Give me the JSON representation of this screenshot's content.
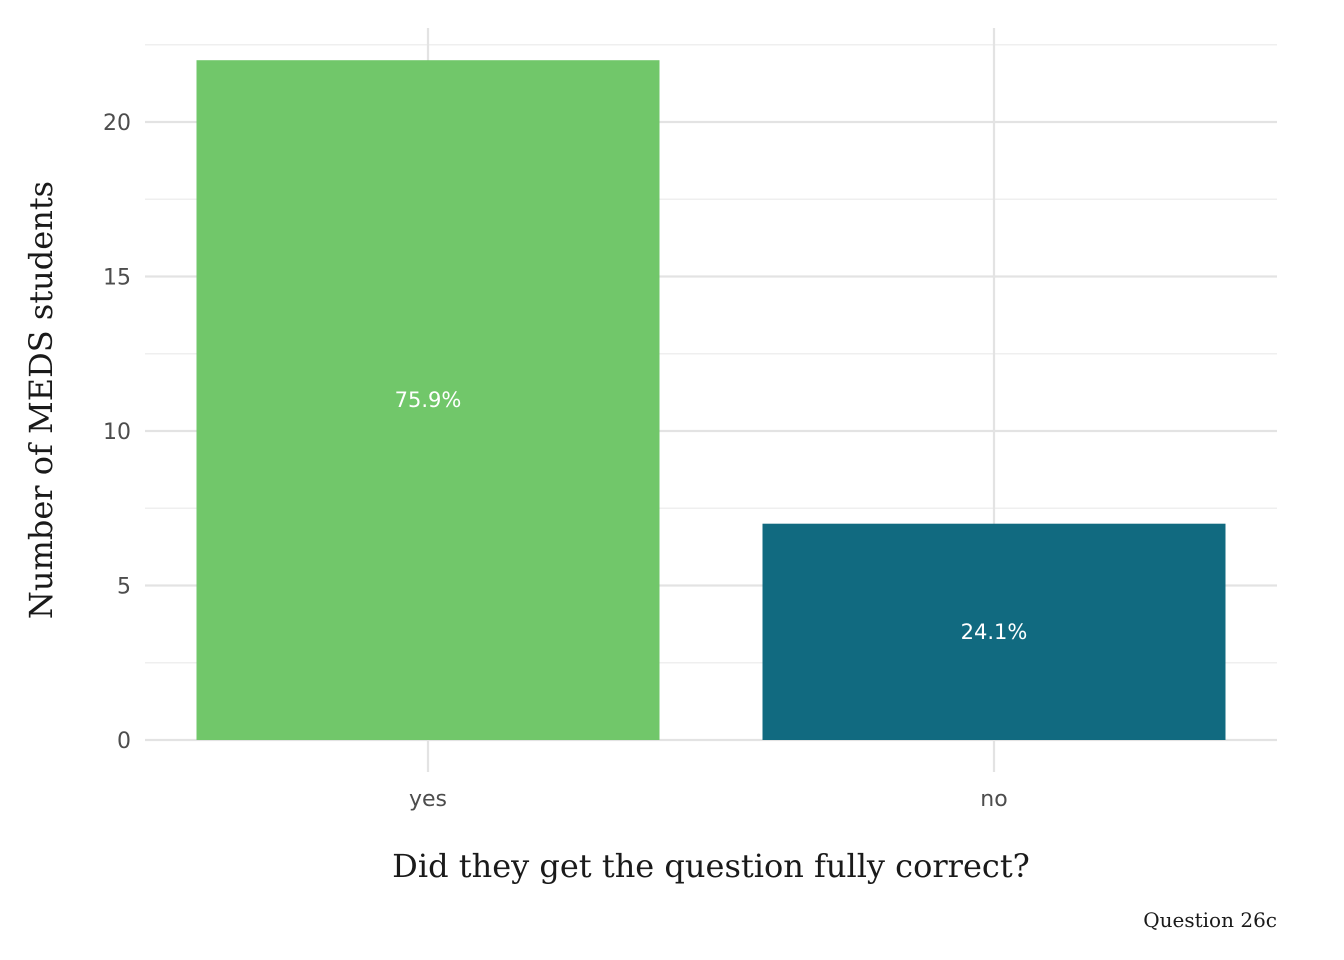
{
  "chart_data": {
    "type": "bar",
    "categories": [
      "yes",
      "no"
    ],
    "values": [
      22,
      7
    ],
    "labels": [
      "75.9%",
      "24.1%"
    ],
    "colors": [
      "#71c76a",
      "#116a80"
    ],
    "xlabel": "Did they get the question fully correct?",
    "ylabel": "Number of MEDS students",
    "caption": "Question 26c",
    "ylim": [
      0,
      22.5
    ],
    "yticks": [
      0,
      5,
      10,
      15,
      20
    ],
    "grid": true,
    "legend": "none"
  }
}
